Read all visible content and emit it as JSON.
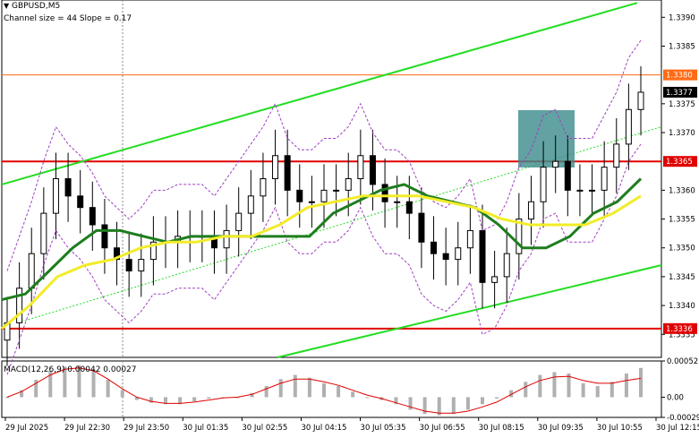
{
  "header": {
    "symbol_label": "GBPUSD,M5",
    "indicator_label": "Channel size = 44 Slope = 0.17"
  },
  "macd": {
    "label": "MACD(12,26,9) 0.00042 0.00027",
    "ticks": [
      "0.00052",
      "0.00",
      "-0.00029"
    ]
  },
  "chart_data": [
    {
      "type": "candlestick",
      "title": "GBPUSD,M5",
      "subtitle": "Channel size = 44 Slope = 0.17",
      "ylim": [
        1.3331,
        1.3393
      ],
      "y_ticks": [
        "1.3390",
        "1.3385",
        "1.3375",
        "1.3370",
        "1.3360",
        "1.3355",
        "1.3350",
        "1.3345",
        "1.3340",
        "1.3335"
      ],
      "x_ticks": [
        "29 Jul 2025",
        "29 Jul 22:30",
        "29 Jul 23:50",
        "30 Jul 01:35",
        "30 Jul 02:55",
        "30 Jul 04:15",
        "30 Jul 05:35",
        "30 Jul 06:55",
        "30 Jul 08:15",
        "30 Jul 09:35",
        "30 Jul 10:55",
        "30 Jul 12:15"
      ],
      "horizontal_levels": [
        {
          "value": 1.338,
          "label": "1.3380",
          "color": "#ff6a13"
        },
        {
          "value": 1.3365,
          "label": "1.3365",
          "color": "#e00000"
        },
        {
          "value": 1.3336,
          "label": "1.3336",
          "color": "#e00000"
        }
      ],
      "current_price": {
        "value": 1.3377,
        "label": "1.3377"
      },
      "close_approx": [
        1.3337,
        1.3343,
        1.3349,
        1.3356,
        1.3362,
        1.3359,
        1.3357,
        1.3354,
        1.335,
        1.3348,
        1.3346,
        1.3348,
        1.3351,
        1.3351,
        1.3352,
        1.3352,
        1.3352,
        1.335,
        1.3353,
        1.3356,
        1.3359,
        1.3362,
        1.3366,
        1.336,
        1.3358,
        1.3358,
        1.336,
        1.336,
        1.3362,
        1.3366,
        1.3361,
        1.3358,
        1.3358,
        1.3356,
        1.3351,
        1.3349,
        1.3348,
        1.335,
        1.3353,
        1.3344,
        1.3345,
        1.3349,
        1.3355,
        1.3358,
        1.3364,
        1.3365,
        1.336,
        1.336,
        1.336,
        1.3364,
        1.3368,
        1.3374,
        1.3377
      ],
      "series": [
        {
          "name": "MA fast",
          "color": "#1e7d1e",
          "values": [
            1.3341,
            1.3342,
            1.3346,
            1.335,
            1.3353,
            1.3353,
            1.3352,
            1.3351,
            1.3352,
            1.3352,
            1.3352,
            1.3352,
            1.3352,
            1.3352,
            1.3356,
            1.3358,
            1.336,
            1.3361,
            1.3359,
            1.3358,
            1.3357,
            1.3354,
            1.335,
            1.335,
            1.3352,
            1.3356,
            1.3358,
            1.3362
          ]
        },
        {
          "name": "MA slow",
          "color": "#f2ec2a",
          "values": [
            1.3336,
            1.334,
            1.3345,
            1.3347,
            1.3348,
            1.335,
            1.3351,
            1.3351,
            1.3352,
            1.3352,
            1.3354,
            1.3357,
            1.3358,
            1.3359,
            1.3359,
            1.3359,
            1.3358,
            1.3357,
            1.3355,
            1.3354,
            1.3354,
            1.3354,
            1.3356,
            1.3359
          ]
        }
      ]
    },
    {
      "type": "bar",
      "title": "MACD(12,26,9) 0.00042 0.00027",
      "ylim": [
        -0.00029,
        0.00052
      ],
      "series": [
        {
          "name": "MACD",
          "values": [
            0.0,
            0.0001,
            0.00025,
            0.00038,
            0.00044,
            0.00046,
            0.0004,
            0.00025,
            0.0001,
            -4e-05,
            -8e-05,
            -0.0001,
            -0.0001,
            -6e-05,
            -2e-05,
            0.0,
            0.0,
            6e-05,
            0.00016,
            0.00026,
            0.00032,
            0.00028,
            0.0002,
            0.00016,
            8e-05,
            0.0,
            -4e-05,
            -0.0001,
            -0.00018,
            -0.00024,
            -0.00026,
            -0.00024,
            -0.00018,
            -0.0001,
            -2e-05,
            0.0001,
            0.00022,
            0.00032,
            0.00036,
            0.00034,
            0.0002,
            0.00016,
            0.00022,
            0.00034,
            0.00042
          ]
        },
        {
          "name": "Signal",
          "values": [
            0.0,
            8e-05,
            0.0002,
            0.00032,
            0.0004,
            0.00042,
            0.00038,
            0.00026,
            0.00012,
            0.0,
            -6e-05,
            -9e-05,
            -9e-05,
            -7e-05,
            -4e-05,
            -1e-05,
            0.0,
            4e-05,
            0.00012,
            0.0002,
            0.00026,
            0.00026,
            0.00022,
            0.00017,
            0.0001,
            3e-05,
            -2e-05,
            -8e-05,
            -0.00014,
            -0.0002,
            -0.00023,
            -0.00023,
            -0.0002,
            -0.00014,
            -7e-05,
            4e-05,
            0.00015,
            0.00024,
            0.00029,
            0.0003,
            0.00024,
            0.0002,
            0.0002,
            0.00024,
            0.00027
          ]
        }
      ]
    }
  ],
  "colors": {
    "bull_candle": "#000000",
    "channel_line": "#22dd22",
    "envelope": "#a040c0",
    "highlight_box": "#3b8b8b",
    "resistance": "#e00000",
    "upper_level": "#ff6a13",
    "macd_signal": "#e00000",
    "macd_bars": "#b0b0b0"
  }
}
